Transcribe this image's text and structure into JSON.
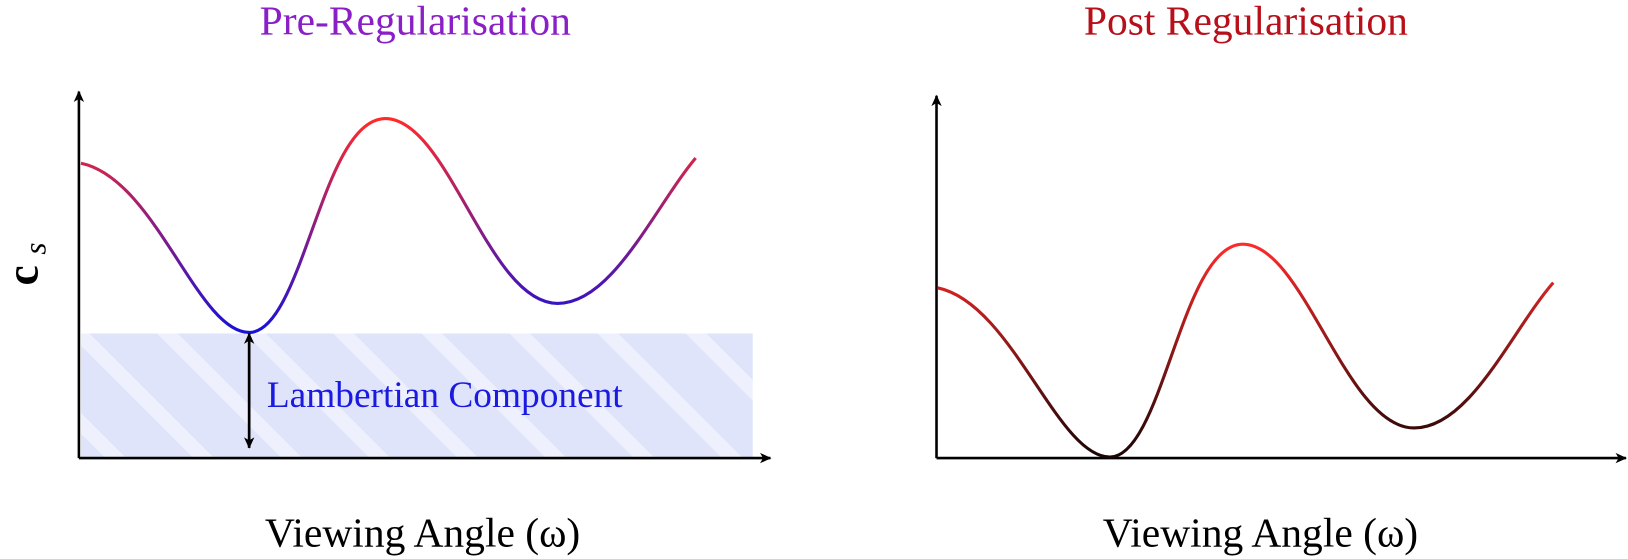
{
  "left_panel": {
    "title": "Pre-Regularisation",
    "x_label": "Viewing Angle (ω)",
    "y_label": {
      "main": "c",
      "sub": "s"
    },
    "annotation": "Lambertian Component"
  },
  "right_panel": {
    "title": "Post Regularisation",
    "x_label": "Viewing Angle (ω)"
  }
}
